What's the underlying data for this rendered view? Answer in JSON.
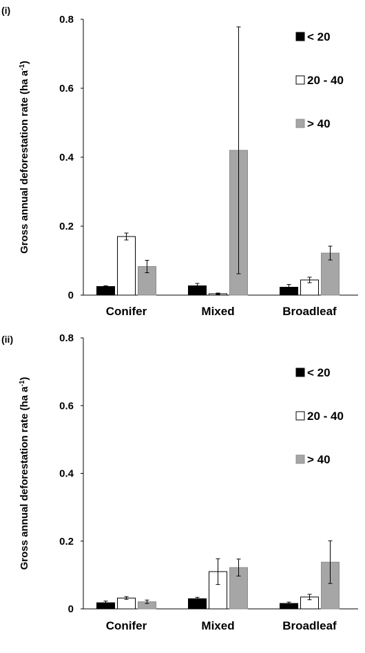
{
  "chart_data": [
    {
      "type": "bar",
      "panel_label": "(i)",
      "ylabel": "Gross annual deforestation rate (ha a",
      "ylabel_sup": "-1",
      "ylabel_end": ")",
      "ylim": [
        0,
        0.8
      ],
      "yticks": [
        "0",
        "0.2",
        "0.4",
        "0.6",
        "0.8"
      ],
      "categories": [
        "Conifer",
        "Mixed",
        "Broadleaf"
      ],
      "legend_position": "top-right",
      "series": [
        {
          "name": "< 20",
          "color": "#000000",
          "values": [
            0.025,
            0.027,
            0.023
          ],
          "errors": [
            0.002,
            0.007,
            0.008
          ]
        },
        {
          "name": "20 - 40",
          "color": "#ffffff",
          "values": [
            0.17,
            0.004,
            0.044
          ],
          "errors": [
            0.01,
            0.002,
            0.008
          ]
        },
        {
          "name": "> 40",
          "color": "#a6a6a6",
          "values": [
            0.083,
            0.42,
            0.122
          ],
          "errors": [
            0.018,
            0.358,
            0.02
          ]
        }
      ]
    },
    {
      "type": "bar",
      "panel_label": "(ii)",
      "ylabel": "Gross annual deforestation rate (ha a",
      "ylabel_sup": "-1",
      "ylabel_end": ")",
      "ylim": [
        0,
        0.8
      ],
      "yticks": [
        "0",
        "0.2",
        "0.4",
        "0.6",
        "0.8"
      ],
      "categories": [
        "Conifer",
        "Mixed",
        "Broadleaf"
      ],
      "legend_position": "top-right",
      "series": [
        {
          "name": "< 20",
          "color": "#000000",
          "values": [
            0.018,
            0.03,
            0.016
          ],
          "errors": [
            0.005,
            0.004,
            0.004
          ]
        },
        {
          "name": "20 - 40",
          "color": "#ffffff",
          "values": [
            0.032,
            0.11,
            0.035
          ],
          "errors": [
            0.004,
            0.038,
            0.008
          ]
        },
        {
          "name": "> 40",
          "color": "#a6a6a6",
          "values": [
            0.021,
            0.122,
            0.138
          ],
          "errors": [
            0.005,
            0.025,
            0.063
          ]
        }
      ]
    }
  ]
}
